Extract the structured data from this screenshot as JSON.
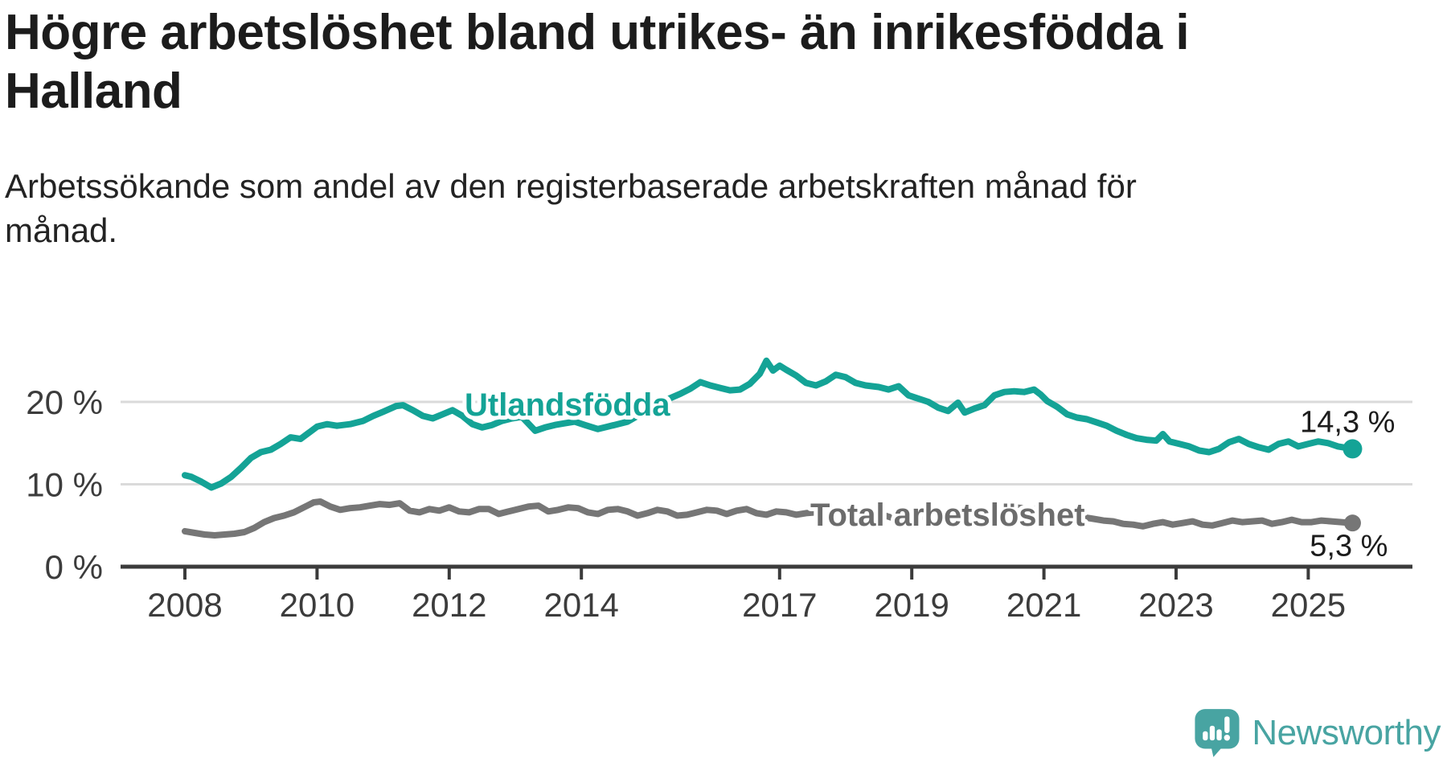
{
  "header": {
    "title": "Högre arbetslöshet bland utrikes- än inrikesfödda i Halland",
    "subtitle": "Arbetssökande som andel av den registerbaserade arbetskraften månad för månad."
  },
  "chart_data": {
    "type": "line",
    "title": "Högre arbetslöshet bland utrikes- än inrikesfödda i Halland",
    "subtitle": "Arbetssökande som andel av den registerbaserade arbetskraften månad för månad.",
    "unit": "%",
    "xlabel": "",
    "ylabel": "",
    "ylim": [
      0,
      26
    ],
    "xlim": [
      2007.0,
      2026.6
    ],
    "grid": "horizontal",
    "legend_position": "inline-labels",
    "colors": {
      "gridline": "#dadada",
      "axis": "#3b3b3b",
      "tick_text": "#3c3c3c",
      "end_label_text": "#1c1c1c"
    },
    "y_ticks": [
      {
        "value": 0,
        "label": "0 %"
      },
      {
        "value": 10,
        "label": "10 %"
      },
      {
        "value": 20,
        "label": "20 %"
      }
    ],
    "x_ticks": [
      {
        "value": 2008,
        "label": "2008"
      },
      {
        "value": 2010,
        "label": "2010"
      },
      {
        "value": 2012,
        "label": "2012"
      },
      {
        "value": 2014,
        "label": "2014"
      },
      {
        "value": 2017,
        "label": "2017"
      },
      {
        "value": 2019,
        "label": "2019"
      },
      {
        "value": 2021,
        "label": "2021"
      },
      {
        "value": 2023,
        "label": "2023"
      },
      {
        "value": 2025,
        "label": "2025"
      }
    ],
    "series": [
      {
        "name": "Total arbetslöshet",
        "color": "#767676",
        "label_color": "#6c6c6c",
        "end_label": "5,3 %",
        "end_value": 5.3,
        "points": [
          [
            2008.0,
            4.3
          ],
          [
            2008.15,
            4.1
          ],
          [
            2008.3,
            3.9
          ],
          [
            2008.45,
            3.8
          ],
          [
            2008.6,
            3.9
          ],
          [
            2008.75,
            4.0
          ],
          [
            2008.9,
            4.2
          ],
          [
            2009.05,
            4.7
          ],
          [
            2009.2,
            5.4
          ],
          [
            2009.35,
            5.9
          ],
          [
            2009.5,
            6.2
          ],
          [
            2009.65,
            6.6
          ],
          [
            2009.8,
            7.2
          ],
          [
            2009.95,
            7.8
          ],
          [
            2010.05,
            7.9
          ],
          [
            2010.2,
            7.3
          ],
          [
            2010.35,
            6.9
          ],
          [
            2010.5,
            7.1
          ],
          [
            2010.65,
            7.2
          ],
          [
            2010.8,
            7.4
          ],
          [
            2010.95,
            7.6
          ],
          [
            2011.1,
            7.5
          ],
          [
            2011.25,
            7.7
          ],
          [
            2011.4,
            6.8
          ],
          [
            2011.55,
            6.6
          ],
          [
            2011.7,
            7.0
          ],
          [
            2011.85,
            6.8
          ],
          [
            2012.0,
            7.2
          ],
          [
            2012.15,
            6.7
          ],
          [
            2012.3,
            6.6
          ],
          [
            2012.45,
            7.0
          ],
          [
            2012.6,
            7.0
          ],
          [
            2012.75,
            6.4
          ],
          [
            2012.9,
            6.7
          ],
          [
            2013.05,
            7.0
          ],
          [
            2013.2,
            7.3
          ],
          [
            2013.35,
            7.4
          ],
          [
            2013.5,
            6.7
          ],
          [
            2013.65,
            6.9
          ],
          [
            2013.8,
            7.2
          ],
          [
            2013.95,
            7.1
          ],
          [
            2014.1,
            6.6
          ],
          [
            2014.25,
            6.4
          ],
          [
            2014.4,
            6.9
          ],
          [
            2014.55,
            7.0
          ],
          [
            2014.7,
            6.7
          ],
          [
            2014.85,
            6.2
          ],
          [
            2015.0,
            6.5
          ],
          [
            2015.15,
            6.9
          ],
          [
            2015.3,
            6.7
          ],
          [
            2015.45,
            6.2
          ],
          [
            2015.6,
            6.3
          ],
          [
            2015.75,
            6.6
          ],
          [
            2015.9,
            6.9
          ],
          [
            2016.05,
            6.8
          ],
          [
            2016.2,
            6.4
          ],
          [
            2016.35,
            6.8
          ],
          [
            2016.5,
            7.0
          ],
          [
            2016.65,
            6.5
          ],
          [
            2016.8,
            6.3
          ],
          [
            2016.95,
            6.7
          ],
          [
            2017.1,
            6.6
          ],
          [
            2017.25,
            6.3
          ],
          [
            2017.4,
            6.5
          ],
          [
            2017.55,
            6.6
          ],
          [
            2017.7,
            6.2
          ],
          [
            2017.85,
            6.0
          ],
          [
            2018.0,
            6.3
          ],
          [
            2018.15,
            6.1
          ],
          [
            2018.3,
            5.9
          ],
          [
            2018.45,
            6.1
          ],
          [
            2018.6,
            6.2
          ],
          [
            2018.75,
            5.8
          ],
          [
            2018.9,
            5.7
          ],
          [
            2019.05,
            6.0
          ],
          [
            2019.2,
            6.1
          ],
          [
            2019.35,
            5.8
          ],
          [
            2019.5,
            5.6
          ],
          [
            2019.65,
            5.5
          ],
          [
            2019.8,
            5.8
          ],
          [
            2019.95,
            5.9
          ],
          [
            2020.1,
            6.1
          ],
          [
            2020.25,
            6.5
          ],
          [
            2020.4,
            7.0
          ],
          [
            2020.55,
            7.2
          ],
          [
            2020.7,
            7.1
          ],
          [
            2020.85,
            7.0
          ],
          [
            2021.0,
            6.9
          ],
          [
            2021.15,
            6.7
          ],
          [
            2021.3,
            6.4
          ],
          [
            2021.45,
            6.2
          ],
          [
            2021.6,
            6.0
          ],
          [
            2021.75,
            5.8
          ],
          [
            2021.9,
            5.6
          ],
          [
            2022.05,
            5.5
          ],
          [
            2022.2,
            5.2
          ],
          [
            2022.35,
            5.1
          ],
          [
            2022.5,
            4.9
          ],
          [
            2022.65,
            5.2
          ],
          [
            2022.8,
            5.4
          ],
          [
            2022.95,
            5.1
          ],
          [
            2023.1,
            5.3
          ],
          [
            2023.25,
            5.5
          ],
          [
            2023.4,
            5.1
          ],
          [
            2023.55,
            5.0
          ],
          [
            2023.7,
            5.3
          ],
          [
            2023.85,
            5.6
          ],
          [
            2024.0,
            5.4
          ],
          [
            2024.15,
            5.5
          ],
          [
            2024.3,
            5.6
          ],
          [
            2024.45,
            5.2
          ],
          [
            2024.6,
            5.4
          ],
          [
            2024.75,
            5.7
          ],
          [
            2024.9,
            5.4
          ],
          [
            2025.05,
            5.4
          ],
          [
            2025.2,
            5.6
          ],
          [
            2025.35,
            5.5
          ],
          [
            2025.5,
            5.4
          ],
          [
            2025.67,
            5.3
          ]
        ]
      },
      {
        "name": "Utlandsfödda",
        "color": "#14a396",
        "label_color": "#14a396",
        "end_label": "14,3 %",
        "end_value": 14.3,
        "points": [
          [
            2008.0,
            11.1
          ],
          [
            2008.1,
            10.9
          ],
          [
            2008.25,
            10.3
          ],
          [
            2008.4,
            9.6
          ],
          [
            2008.55,
            10.1
          ],
          [
            2008.7,
            10.9
          ],
          [
            2008.85,
            12.0
          ],
          [
            2009.0,
            13.2
          ],
          [
            2009.15,
            13.9
          ],
          [
            2009.3,
            14.2
          ],
          [
            2009.45,
            14.9
          ],
          [
            2009.6,
            15.7
          ],
          [
            2009.75,
            15.5
          ],
          [
            2009.9,
            16.4
          ],
          [
            2010.0,
            17.0
          ],
          [
            2010.15,
            17.3
          ],
          [
            2010.3,
            17.1
          ],
          [
            2010.5,
            17.3
          ],
          [
            2010.7,
            17.7
          ],
          [
            2010.85,
            18.3
          ],
          [
            2011.0,
            18.8
          ],
          [
            2011.2,
            19.5
          ],
          [
            2011.3,
            19.6
          ],
          [
            2011.45,
            19.0
          ],
          [
            2011.6,
            18.3
          ],
          [
            2011.75,
            18.0
          ],
          [
            2011.9,
            18.5
          ],
          [
            2012.05,
            19.0
          ],
          [
            2012.2,
            18.3
          ],
          [
            2012.35,
            17.3
          ],
          [
            2012.5,
            16.9
          ],
          [
            2012.65,
            17.2
          ],
          [
            2012.8,
            17.7
          ],
          [
            2012.95,
            18.0
          ],
          [
            2013.1,
            18.2
          ],
          [
            2013.3,
            16.5
          ],
          [
            2013.45,
            16.9
          ],
          [
            2013.6,
            17.2
          ],
          [
            2013.75,
            17.4
          ],
          [
            2013.9,
            17.6
          ],
          [
            2014.05,
            17.2
          ],
          [
            2014.25,
            16.7
          ],
          [
            2014.4,
            17.0
          ],
          [
            2014.55,
            17.3
          ],
          [
            2014.7,
            17.6
          ],
          [
            2014.85,
            18.3
          ],
          [
            2015.0,
            19.2
          ],
          [
            2015.15,
            19.9
          ],
          [
            2015.3,
            20.3
          ],
          [
            2015.5,
            21.0
          ],
          [
            2015.65,
            21.6
          ],
          [
            2015.8,
            22.4
          ],
          [
            2015.95,
            22.0
          ],
          [
            2016.1,
            21.7
          ],
          [
            2016.25,
            21.4
          ],
          [
            2016.4,
            21.5
          ],
          [
            2016.55,
            22.2
          ],
          [
            2016.7,
            23.4
          ],
          [
            2016.8,
            25.0
          ],
          [
            2016.9,
            23.8
          ],
          [
            2017.0,
            24.4
          ],
          [
            2017.1,
            23.9
          ],
          [
            2017.25,
            23.2
          ],
          [
            2017.4,
            22.3
          ],
          [
            2017.55,
            22.0
          ],
          [
            2017.7,
            22.5
          ],
          [
            2017.85,
            23.3
          ],
          [
            2018.0,
            23.0
          ],
          [
            2018.15,
            22.3
          ],
          [
            2018.3,
            22.0
          ],
          [
            2018.5,
            21.8
          ],
          [
            2018.65,
            21.5
          ],
          [
            2018.8,
            21.9
          ],
          [
            2018.95,
            20.8
          ],
          [
            2019.1,
            20.4
          ],
          [
            2019.25,
            20.0
          ],
          [
            2019.4,
            19.3
          ],
          [
            2019.55,
            18.9
          ],
          [
            2019.7,
            19.9
          ],
          [
            2019.8,
            18.7
          ],
          [
            2019.95,
            19.2
          ],
          [
            2020.1,
            19.6
          ],
          [
            2020.25,
            20.8
          ],
          [
            2020.4,
            21.2
          ],
          [
            2020.55,
            21.3
          ],
          [
            2020.7,
            21.2
          ],
          [
            2020.85,
            21.5
          ],
          [
            2020.95,
            20.9
          ],
          [
            2021.05,
            20.1
          ],
          [
            2021.2,
            19.4
          ],
          [
            2021.35,
            18.5
          ],
          [
            2021.5,
            18.1
          ],
          [
            2021.65,
            17.9
          ],
          [
            2021.8,
            17.5
          ],
          [
            2021.95,
            17.1
          ],
          [
            2022.1,
            16.5
          ],
          [
            2022.25,
            16.0
          ],
          [
            2022.4,
            15.6
          ],
          [
            2022.55,
            15.4
          ],
          [
            2022.7,
            15.3
          ],
          [
            2022.8,
            16.1
          ],
          [
            2022.9,
            15.2
          ],
          [
            2023.05,
            14.9
          ],
          [
            2023.2,
            14.6
          ],
          [
            2023.35,
            14.1
          ],
          [
            2023.5,
            13.9
          ],
          [
            2023.65,
            14.3
          ],
          [
            2023.8,
            15.1
          ],
          [
            2023.95,
            15.5
          ],
          [
            2024.1,
            14.9
          ],
          [
            2024.25,
            14.5
          ],
          [
            2024.4,
            14.2
          ],
          [
            2024.55,
            14.9
          ],
          [
            2024.7,
            15.2
          ],
          [
            2024.85,
            14.6
          ],
          [
            2025.0,
            14.9
          ],
          [
            2025.15,
            15.2
          ],
          [
            2025.3,
            15.0
          ],
          [
            2025.45,
            14.6
          ],
          [
            2025.67,
            14.3
          ]
        ]
      }
    ]
  },
  "footer": {
    "brand": "Newsworthy",
    "logo_color": "#48a4a2"
  }
}
